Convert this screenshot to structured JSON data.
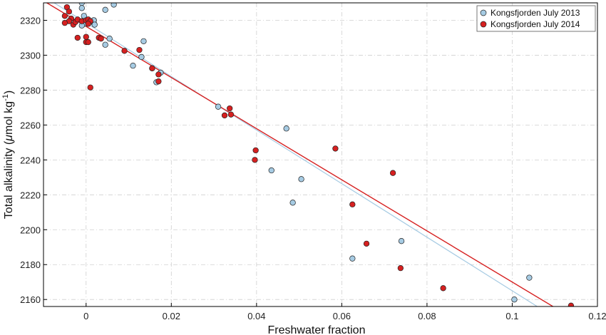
{
  "chart_data": {
    "type": "scatter",
    "title": "",
    "xlabel": "Freshwater  fraction",
    "ylabel_main": "Total alkalinity (",
    "ylabel_mu": "μ",
    "ylabel_unit": "mol kg",
    "ylabel_sup": "-1",
    "ylabel_close": ")",
    "xlim": [
      -0.01,
      0.12
    ],
    "ylim": [
      2156,
      2330
    ],
    "xticks": [
      0,
      0.02,
      0.04,
      0.06,
      0.08,
      0.1,
      0.12
    ],
    "xtick_labels": [
      "0",
      "0.02",
      "0.04",
      "0.06",
      "0.08",
      "0.1",
      "0.12"
    ],
    "yticks": [
      2160,
      2180,
      2200,
      2220,
      2240,
      2260,
      2280,
      2300,
      2320
    ],
    "ytick_labels": [
      "2160",
      "2180",
      "2200",
      "2220",
      "2240",
      "2260",
      "2280",
      "2300",
      "2320"
    ],
    "grid": true,
    "legend_position": "top-right",
    "series": [
      {
        "name": "Kongsfjorden July 2013",
        "color": "#a6cbe3",
        "fit": {
          "slope": -1535,
          "intercept": 2318.5
        },
        "points": [
          [
            -0.001,
            2330
          ],
          [
            -0.001,
            2327
          ],
          [
            0.0065,
            2329
          ],
          [
            0.0045,
            2326
          ],
          [
            -0.0005,
            2322.5
          ],
          [
            -0.0005,
            2318
          ],
          [
            0.0005,
            2318.5
          ],
          [
            -0.001,
            2317
          ],
          [
            0.0018,
            2320
          ],
          [
            0.0018,
            2320
          ],
          [
            0.0018,
            2318.5
          ],
          [
            0.0018,
            2320
          ],
          [
            0.002,
            2317.5
          ],
          [
            0.0055,
            2309.5
          ],
          [
            0.0045,
            2306
          ],
          [
            0.0135,
            2308
          ],
          [
            0.013,
            2299
          ],
          [
            0.011,
            2294
          ],
          [
            0.0155,
            2292.5
          ],
          [
            0.0165,
            2284.5
          ],
          [
            0.0175,
            2290
          ],
          [
            0.031,
            2270.5
          ],
          [
            0.047,
            2258
          ],
          [
            0.0435,
            2234
          ],
          [
            0.0505,
            2229
          ],
          [
            0.0485,
            2215.5
          ],
          [
            0.074,
            2193.5
          ],
          [
            0.0625,
            2183.5
          ],
          [
            0.1005,
            2160
          ],
          [
            0.104,
            2172.5
          ]
        ]
      },
      {
        "name": "Kongsfjorden July 2014",
        "color": "#d62020",
        "fit": {
          "slope": -1465,
          "intercept": 2316.5
        },
        "points": [
          [
            -0.0045,
            2327.5
          ],
          [
            -0.004,
            2325
          ],
          [
            -0.005,
            2322.5
          ],
          [
            -0.0035,
            2321
          ],
          [
            -0.004,
            2319.5
          ],
          [
            -0.005,
            2318.5
          ],
          [
            -0.003,
            2317.5
          ],
          [
            -0.0025,
            2319
          ],
          [
            -0.002,
            2320.5
          ],
          [
            -0.001,
            2319.5
          ],
          [
            0,
            2320
          ],
          [
            0.0005,
            2320.5
          ],
          [
            0.001,
            2319.5
          ],
          [
            0.0005,
            2318
          ],
          [
            -0.002,
            2310
          ],
          [
            0,
            2310.5
          ],
          [
            0,
            2307.5
          ],
          [
            0.0005,
            2307.5
          ],
          [
            0.003,
            2310
          ],
          [
            0.0035,
            2309.5
          ],
          [
            0.009,
            2302.5
          ],
          [
            0.0125,
            2303
          ],
          [
            0.0155,
            2292.5
          ],
          [
            0.017,
            2289
          ],
          [
            0.017,
            2285
          ],
          [
            0.001,
            2281.5
          ],
          [
            0.0325,
            2265.5
          ],
          [
            0.0337,
            2269.5
          ],
          [
            0.034,
            2266
          ],
          [
            0.0398,
            2245.5
          ],
          [
            0.0396,
            2240
          ],
          [
            0.0585,
            2246.5
          ],
          [
            0.0625,
            2214.5
          ],
          [
            0.072,
            2232.5
          ],
          [
            0.0658,
            2192
          ],
          [
            0.0738,
            2178
          ],
          [
            0.0838,
            2166.5
          ],
          [
            0.1138,
            2156.5
          ]
        ]
      }
    ]
  }
}
